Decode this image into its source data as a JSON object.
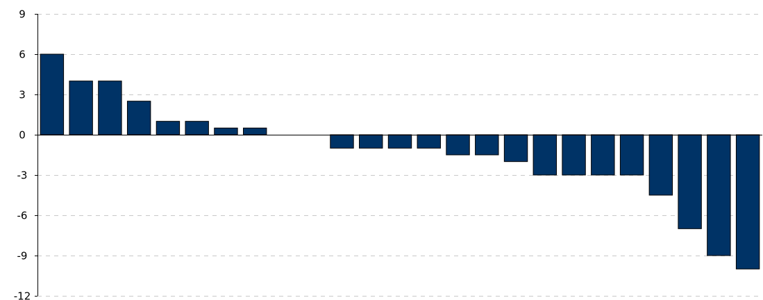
{
  "chart_data": {
    "type": "bar",
    "title": "",
    "xlabel": "",
    "ylabel": "",
    "ylim": [
      -12,
      9
    ],
    "yticks": [
      9,
      6,
      3,
      0,
      -3,
      -6,
      -9,
      -12
    ],
    "grid": true,
    "bar_color": "#003366",
    "values": [
      6,
      4,
      4,
      2.5,
      1,
      1,
      0.5,
      0.5,
      0,
      0,
      -1,
      -1,
      -1,
      -1,
      -1.5,
      -1.5,
      -2,
      -3,
      -3,
      -3,
      -3,
      -4.5,
      -7,
      -9,
      -10
    ]
  }
}
